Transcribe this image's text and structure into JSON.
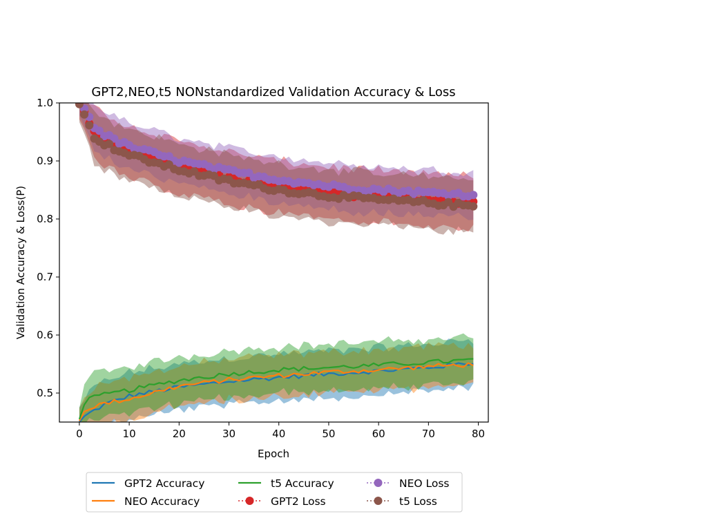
{
  "chart_data": {
    "type": "line",
    "title": "GPT2,NEO,t5 NONstandardized Validation Accuracy & Loss",
    "xlabel": "Epoch",
    "ylabel": "Validation Accuracy & Loss(P)",
    "xlim": [
      -4,
      82
    ],
    "ylim": [
      0.45,
      1.0
    ],
    "x_ticks": [
      "0",
      "10",
      "20",
      "30",
      "40",
      "50",
      "60",
      "70",
      "80"
    ],
    "y_ticks": [
      "0.5",
      "0.6",
      "0.7",
      "0.8",
      "0.9",
      "1.0"
    ],
    "grid": false,
    "legend_position": "below",
    "series": [
      {
        "name": "GPT2 Accuracy",
        "color": "#1f77b4",
        "style": "solid",
        "marker": false,
        "band_halfwidth": 0.04,
        "key_x": [
          0,
          1,
          2,
          5,
          10,
          20,
          30,
          40,
          50,
          60,
          70,
          79
        ],
        "key_y": [
          0.45,
          0.46,
          0.465,
          0.48,
          0.495,
          0.51,
          0.52,
          0.527,
          0.533,
          0.538,
          0.544,
          0.552
        ]
      },
      {
        "name": "NEO Accuracy",
        "color": "#ff7f0e",
        "style": "solid",
        "marker": false,
        "band_halfwidth": 0.035,
        "key_x": [
          0,
          1,
          2,
          5,
          10,
          20,
          30,
          40,
          50,
          60,
          70,
          79
        ],
        "key_y": [
          0.452,
          0.468,
          0.475,
          0.482,
          0.49,
          0.512,
          0.523,
          0.53,
          0.536,
          0.54,
          0.546,
          0.549
        ]
      },
      {
        "name": "t5 Accuracy",
        "color": "#2ca02c",
        "style": "solid",
        "marker": false,
        "band_halfwidth": 0.04,
        "key_x": [
          0,
          1,
          2,
          5,
          10,
          20,
          30,
          40,
          50,
          60,
          70,
          79
        ],
        "key_y": [
          0.455,
          0.48,
          0.49,
          0.497,
          0.505,
          0.522,
          0.533,
          0.54,
          0.544,
          0.548,
          0.553,
          0.557
        ]
      },
      {
        "name": "GPT2 Loss",
        "color": "#d62728",
        "style": "dotted",
        "marker": true,
        "band_halfwidth": 0.045,
        "key_x": [
          0,
          1,
          2,
          3,
          5,
          10,
          20,
          30,
          40,
          50,
          60,
          70,
          79
        ],
        "key_y": [
          1.0,
          0.985,
          0.965,
          0.948,
          0.935,
          0.915,
          0.89,
          0.87,
          0.855,
          0.845,
          0.838,
          0.832,
          0.828
        ]
      },
      {
        "name": "NEO Loss",
        "color": "#9467bd",
        "style": "dotted",
        "marker": true,
        "band_halfwidth": 0.04,
        "key_x": [
          0,
          1,
          2,
          3,
          5,
          10,
          20,
          30,
          40,
          50,
          60,
          70,
          79
        ],
        "key_y": [
          1.0,
          0.99,
          0.975,
          0.96,
          0.945,
          0.925,
          0.9,
          0.882,
          0.868,
          0.857,
          0.85,
          0.845,
          0.842
        ]
      },
      {
        "name": "t5 Loss",
        "color": "#8c564b",
        "style": "dotted",
        "marker": true,
        "band_halfwidth": 0.045,
        "key_x": [
          0,
          1,
          2,
          3,
          5,
          10,
          20,
          30,
          40,
          50,
          60,
          70,
          79
        ],
        "key_y": [
          0.998,
          0.98,
          0.96,
          0.942,
          0.93,
          0.91,
          0.885,
          0.865,
          0.85,
          0.84,
          0.833,
          0.828,
          0.822
        ]
      }
    ]
  }
}
